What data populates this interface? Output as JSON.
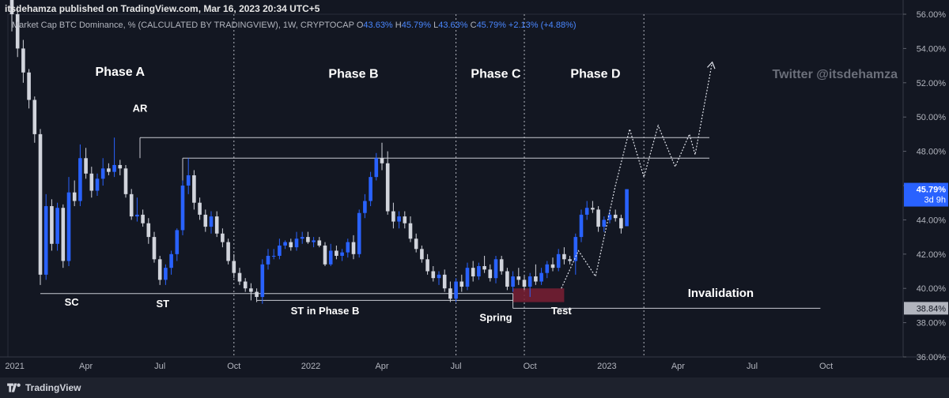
{
  "header": {
    "published": "itsdehamza published on TradingView.com, Mar 16, 2023 20:34 UTC+5",
    "symbol": "Market Cap BTC Dominance, % (CALCULATED BY TRADINGVIEW), 1W, CRYPTOCAP",
    "o_label": "O",
    "o_value": "43.63%",
    "h_label": "H",
    "h_value": "45.79%",
    "l_label": "L",
    "l_value": "43.63%",
    "c_label": "C",
    "c_value": "45.79% +2.13% (+4.88%)"
  },
  "watermark": "Twitter @itsdehamza",
  "footer": {
    "brand": "TradingView"
  },
  "colors": {
    "background": "#131722",
    "up": "#2962ff",
    "down": "#d1d4dc",
    "accent": "#2962ff",
    "spring_zone": "#7a1f33"
  },
  "chart_data": {
    "type": "candlestick",
    "ylim": [
      36,
      56
    ],
    "y_ticks": [
      "36.00%",
      "38.00%",
      "40.00%",
      "42.00%",
      "44.00%",
      "46.00%",
      "48.00%",
      "50.00%",
      "52.00%",
      "54.00%",
      "56.00%"
    ],
    "x_ticks": [
      {
        "label": "2021",
        "x": 0.5
      },
      {
        "label": "Apr",
        "x": 13
      },
      {
        "label": "Jul",
        "x": 26
      },
      {
        "label": "Oct",
        "x": 39
      },
      {
        "label": "2022",
        "x": 52.5
      },
      {
        "label": "Apr",
        "x": 65
      },
      {
        "label": "Jul",
        "x": 78
      },
      {
        "label": "Oct",
        "x": 91
      },
      {
        "label": "2023",
        "x": 104.5
      },
      {
        "label": "Apr",
        "x": 117
      },
      {
        "label": "Jul",
        "x": 130
      },
      {
        "label": "Oct",
        "x": 143
      }
    ],
    "price_label": {
      "value": "45.79%",
      "sub": "3d 9h"
    },
    "invalidation_label": "38.84%",
    "phases": [
      {
        "label": "Phase A",
        "x": 19,
        "y": 52.4
      },
      {
        "label": "Phase B",
        "x": 60,
        "y": 52.3
      },
      {
        "label": "Phase C",
        "x": 85,
        "y": 52.3
      },
      {
        "label": "Phase D",
        "x": 102.5,
        "y": 52.3
      }
    ],
    "annotations": [
      {
        "text": "AR",
        "x": 22.5,
        "y": 50.3
      },
      {
        "text": "SC",
        "x": 10.5,
        "y": 39.0
      },
      {
        "text": "ST",
        "x": 26.5,
        "y": 38.9
      },
      {
        "text": "ST in Phase B",
        "x": 55,
        "y": 38.5
      },
      {
        "text": "Spring",
        "x": 85,
        "y": 38.1
      },
      {
        "text": "Test",
        "x": 96.5,
        "y": 38.5
      },
      {
        "text": "Invalidation",
        "x": 124.5,
        "y": 39.5
      }
    ],
    "phase_dividers": [
      39,
      78,
      90,
      111
    ],
    "candles": [
      [
        58,
        58.5,
        55,
        56
      ],
      [
        56,
        56.5,
        53.5,
        54
      ],
      [
        54,
        54.5,
        52,
        52.6
      ],
      [
        52.6,
        52.8,
        50.5,
        51
      ],
      [
        51,
        51.2,
        48.5,
        49
      ],
      [
        49,
        49.3,
        40.2,
        40.8
      ],
      [
        40.8,
        45.5,
        40.5,
        44.8
      ],
      [
        44.8,
        45.2,
        42.2,
        42.6
      ],
      [
        42.6,
        45,
        42.2,
        44.7
      ],
      [
        44.7,
        44.9,
        41.2,
        41.6
      ],
      [
        41.6,
        46.5,
        41.3,
        45.6
      ],
      [
        45.6,
        46.3,
        44.8,
        45.1
      ],
      [
        45.1,
        48.4,
        44.8,
        47.6
      ],
      [
        47.6,
        48.2,
        46.4,
        46.7
      ],
      [
        46.7,
        47.1,
        45.3,
        45.7
      ],
      [
        45.7,
        46.7,
        45.4,
        46.4
      ],
      [
        46.4,
        47.6,
        46,
        47
      ],
      [
        47,
        47.3,
        46.6,
        46.8
      ],
      [
        46.8,
        48.8,
        46.5,
        47.2
      ],
      [
        47.2,
        47.5,
        46.6,
        47
      ],
      [
        47,
        47.2,
        45.3,
        45.5
      ],
      [
        45.5,
        45.8,
        44,
        44.2
      ],
      [
        44.2,
        45.3,
        43.9,
        44.3
      ],
      [
        44.3,
        44.6,
        43.6,
        43.8
      ],
      [
        43.8,
        44.1,
        42.6,
        43
      ],
      [
        43,
        43.3,
        41.5,
        41.7
      ],
      [
        41.7,
        41.9,
        40.2,
        40.5
      ],
      [
        40.5,
        41.4,
        40.2,
        41.2
      ],
      [
        41.2,
        42.2,
        40.8,
        42
      ],
      [
        42,
        43.5,
        41.6,
        43.4
      ],
      [
        43.4,
        46.3,
        43.1,
        46
      ],
      [
        46,
        47.6,
        45.5,
        46.6
      ],
      [
        46.6,
        46.9,
        44.6,
        45
      ],
      [
        45,
        45.3,
        44,
        44.3
      ],
      [
        44.3,
        44.6,
        43.3,
        43.6
      ],
      [
        43.6,
        44.5,
        43.2,
        44.2
      ],
      [
        44.2,
        44.5,
        43,
        43.2
      ],
      [
        43.2,
        43.5,
        42.4,
        42.7
      ],
      [
        42.7,
        42.9,
        41.4,
        41.6
      ],
      [
        41.6,
        42,
        40.6,
        40.9
      ],
      [
        40.9,
        41.2,
        40.2,
        40.4
      ],
      [
        40.4,
        40.6,
        39.8,
        40
      ],
      [
        40,
        40.3,
        39.3,
        39.8
      ],
      [
        39.8,
        40,
        39.2,
        39.5
      ],
      [
        39.5,
        41.7,
        39.1,
        41.4
      ],
      [
        41.4,
        42.3,
        41.1,
        41.9
      ],
      [
        41.9,
        42.3,
        41.7,
        41.9
      ],
      [
        41.9,
        42.9,
        41.7,
        42.5
      ],
      [
        42.5,
        42.8,
        42.3,
        42.7
      ],
      [
        42.7,
        42.9,
        42.2,
        42.4
      ],
      [
        42.4,
        43.3,
        42.2,
        42.9
      ],
      [
        42.9,
        43.3,
        42.6,
        43
      ],
      [
        43,
        43.3,
        42.6,
        42.7
      ],
      [
        42.7,
        43,
        42.4,
        42.8
      ],
      [
        42.8,
        43,
        42.4,
        42.5
      ],
      [
        42.5,
        42.7,
        41.3,
        41.4
      ],
      [
        41.4,
        42.6,
        41.3,
        42.2
      ],
      [
        42.2,
        42.5,
        41.7,
        41.9
      ],
      [
        41.9,
        42.3,
        41.6,
        42.1
      ],
      [
        42.1,
        42.9,
        41.8,
        42.7
      ],
      [
        42.7,
        43.1,
        41.7,
        42
      ],
      [
        42,
        44.6,
        41.8,
        44.4
      ],
      [
        44.4,
        45.5,
        44.1,
        45.1
      ],
      [
        45.1,
        46.8,
        44.8,
        46.5
      ],
      [
        46.5,
        47.9,
        46.3,
        47.6
      ],
      [
        47.6,
        48.5,
        46.9,
        47.3
      ],
      [
        47.3,
        48,
        44.3,
        44.5
      ],
      [
        44.5,
        45,
        43.5,
        43.9
      ],
      [
        43.9,
        44.5,
        43.5,
        44.2
      ],
      [
        44.2,
        44.5,
        43.5,
        43.8
      ],
      [
        43.8,
        44.2,
        42.7,
        42.9
      ],
      [
        42.9,
        43.2,
        42.1,
        42.3
      ],
      [
        42.3,
        42.5,
        41.5,
        41.7
      ],
      [
        41.7,
        42,
        40.8,
        41
      ],
      [
        41,
        41.3,
        40.4,
        40.6
      ],
      [
        40.6,
        41,
        40.2,
        40.8
      ],
      [
        40.8,
        41.1,
        39.8,
        40
      ],
      [
        40,
        40.4,
        39.2,
        39.4
      ],
      [
        39.4,
        40.6,
        39.2,
        40.4
      ],
      [
        40.4,
        40.8,
        39.8,
        40.1
      ],
      [
        40.1,
        41.5,
        39.9,
        41.2
      ],
      [
        41.2,
        41.6,
        40.4,
        40.7
      ],
      [
        40.7,
        41.5,
        40.5,
        41.3
      ],
      [
        41.3,
        41.9,
        40.9,
        41.1
      ],
      [
        41.1,
        41.4,
        40.4,
        40.6
      ],
      [
        40.6,
        41.9,
        40.3,
        41.7
      ],
      [
        41.7,
        41.9,
        40.8,
        41
      ],
      [
        41,
        41.2,
        39.9,
        40.1
      ],
      [
        40.1,
        41,
        39.8,
        40.7
      ],
      [
        40.7,
        41.2,
        40.2,
        40.5
      ],
      [
        40.5,
        40.8,
        39.9,
        40.1
      ],
      [
        40.1,
        40.9,
        39.5,
        40.7
      ],
      [
        40.7,
        41.4,
        40.2,
        40.4
      ],
      [
        40.4,
        41.2,
        40.2,
        40.9
      ],
      [
        40.9,
        41.6,
        40.6,
        41.4
      ],
      [
        41.4,
        41.8,
        41,
        41.2
      ],
      [
        41.2,
        42.3,
        41,
        42
      ],
      [
        42,
        42.4,
        41.4,
        41.7
      ],
      [
        41.7,
        41.9,
        41.4,
        41.6
      ],
      [
        41.6,
        43.2,
        40.8,
        43
      ],
      [
        43,
        44.6,
        42.7,
        44.3
      ],
      [
        44.3,
        45.1,
        44,
        44.7
      ],
      [
        44.7,
        45.1,
        44.4,
        44.6
      ],
      [
        44.6,
        44.8,
        43.3,
        43.6
      ],
      [
        43.6,
        44.2,
        43.3,
        44
      ],
      [
        44,
        44.6,
        43.8,
        44.3
      ],
      [
        44.3,
        44.6,
        43.9,
        44.1
      ],
      [
        44.1,
        44.3,
        43.2,
        43.5
      ],
      [
        43.63,
        45.79,
        43.63,
        45.79
      ]
    ],
    "levels": [
      {
        "from": 22.5,
        "to": 122.5,
        "y": 48.8
      },
      {
        "from": 30,
        "to": 122.5,
        "y": 47.6
      },
      {
        "from": 5,
        "to": 88,
        "y": 39.7
      },
      {
        "from": 43,
        "to": 88,
        "y": 39.3
      },
      {
        "from": 88,
        "to": 142,
        "y": 38.84
      }
    ],
    "spring_zone": {
      "x0": 88,
      "x1": 97,
      "y0": 39.2,
      "y1": 40.0
    },
    "projection": [
      [
        96.5,
        40
      ],
      [
        99.5,
        42.2
      ],
      [
        102.5,
        40.7
      ],
      [
        106,
        46
      ],
      [
        108.5,
        49.3
      ],
      [
        111,
        46.5
      ],
      [
        113.5,
        49.5
      ],
      [
        116.5,
        47.1
      ],
      [
        119,
        49
      ],
      [
        120,
        47.8
      ],
      [
        123,
        53.2
      ]
    ]
  }
}
